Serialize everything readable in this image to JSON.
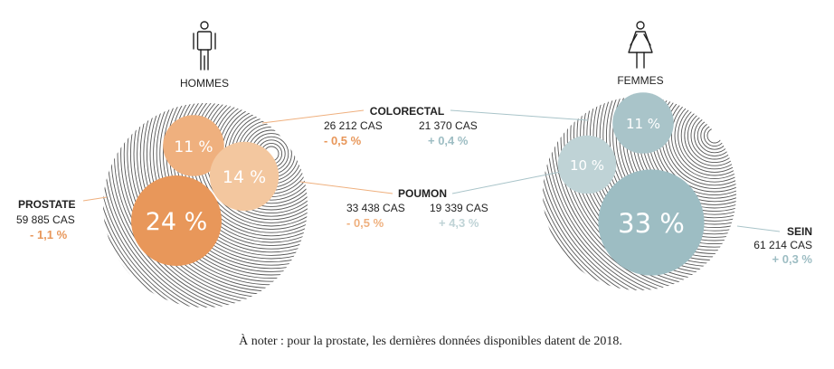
{
  "chart_data": {
    "type": "bubble",
    "groups": [
      {
        "key": "hommes",
        "label": "HOMMES",
        "color": "#e8975a",
        "bubbles": [
          {
            "cancer": "PROSTATE",
            "percent": 24,
            "label": "24 %",
            "cases": "59 885 CAS",
            "trend": "- 1,1 %",
            "color": "#e8975a"
          },
          {
            "cancer": "COLORECTAL",
            "percent": 11,
            "label": "11 %",
            "cases": "26 212 CAS",
            "trend": "- 0,5 %",
            "color": "#efb07e"
          },
          {
            "cancer": "POUMON",
            "percent": 14,
            "label": "14 %",
            "cases": "33 438 CAS",
            "trend": "- 0,5 %",
            "color": "#f3c79f"
          }
        ]
      },
      {
        "key": "femmes",
        "label": "FEMMES",
        "color": "#9dbdc3",
        "bubbles": [
          {
            "cancer": "SEIN",
            "percent": 33,
            "label": "33 %",
            "cases": "61 214 CAS",
            "trend": "+ 0,3 %",
            "color": "#9dbdc3"
          },
          {
            "cancer": "COLORECTAL",
            "percent": 11,
            "label": "11 %",
            "cases": "21 370 CAS",
            "trend": "+ 0,4 %",
            "color": "#a9c4c9"
          },
          {
            "cancer": "POUMON",
            "percent": 10,
            "label": "10 %",
            "cases": "19 339 CAS",
            "trend": "+ 4,3 %",
            "color": "#bfd3d6"
          }
        ]
      }
    ],
    "center_labels": [
      "COLORECTAL",
      "POUMON"
    ],
    "note": "À noter : pour la prostate, les dernières données disponibles datent de 2018."
  },
  "icons": {
    "men": "man-icon",
    "women": "woman-icon"
  },
  "colors": {
    "text": "#222222",
    "orange_text": "#e8975a",
    "blue_text": "#9dbdc3",
    "hatch": "#555555"
  }
}
